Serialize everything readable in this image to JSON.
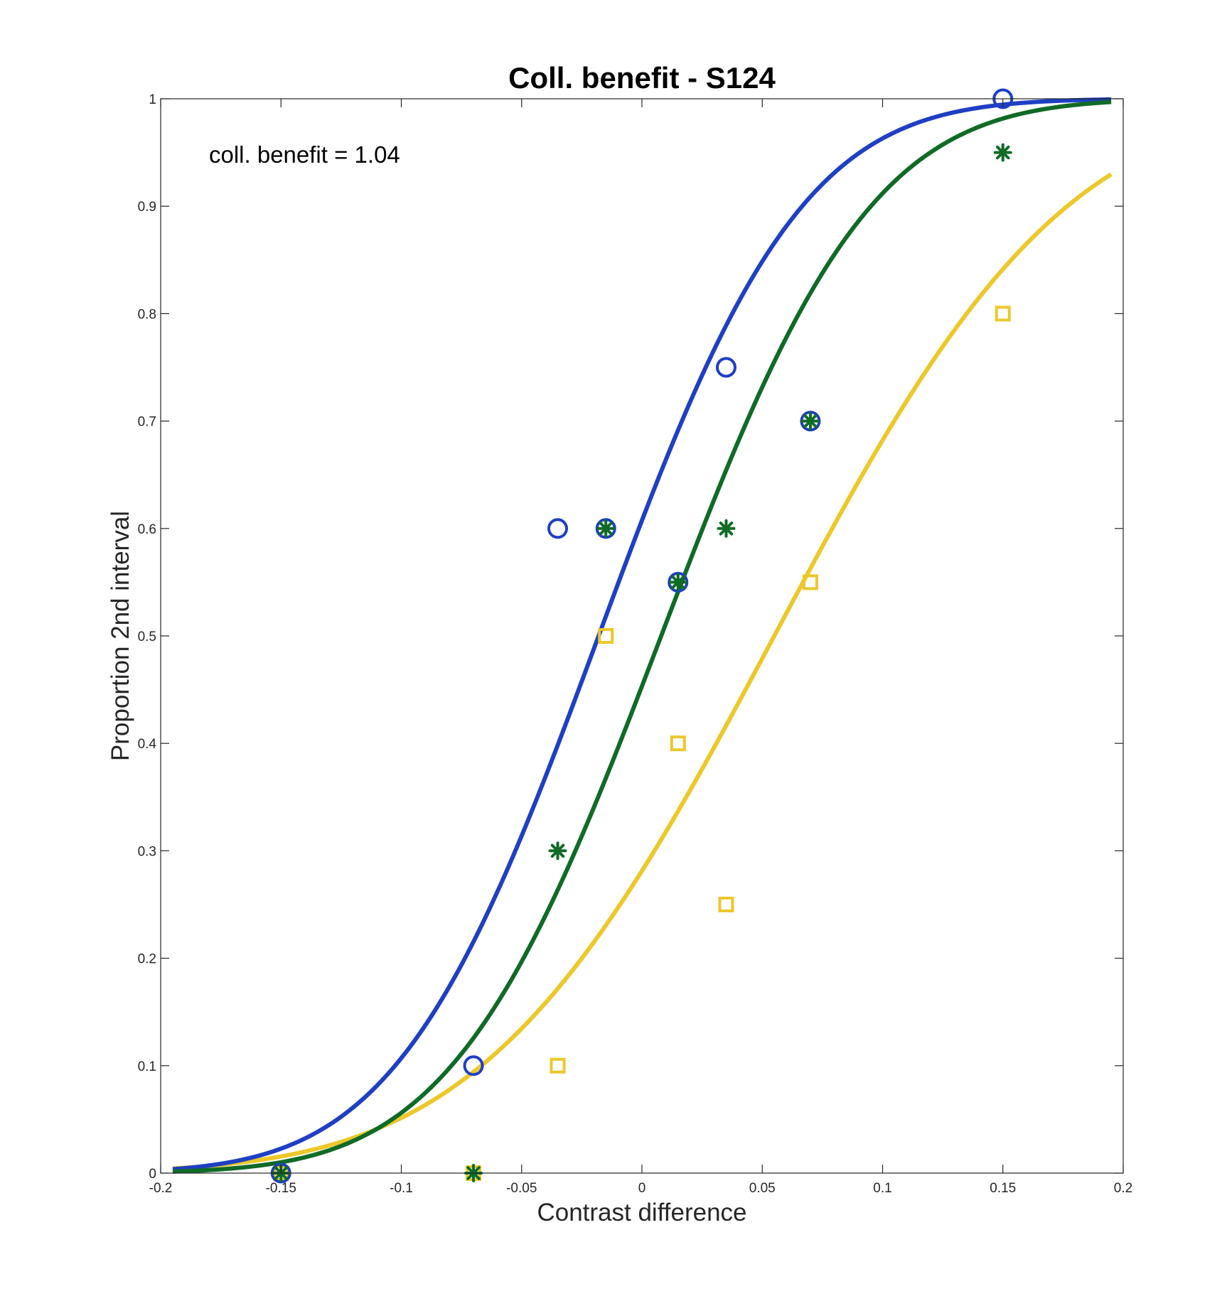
{
  "chart_data": {
    "type": "scatter",
    "title": "Coll. benefit - S124",
    "xlabel": "Contrast difference",
    "ylabel": "Proportion 2nd interval",
    "xlim": [
      -0.2,
      0.2
    ],
    "ylim": [
      0,
      1
    ],
    "x_ticks": [
      "-0.2",
      "-0.15",
      "-0.1",
      "-0.05",
      "0",
      "0.05",
      "0.1",
      "0.15",
      "0.2"
    ],
    "y_ticks": [
      "0",
      "0.1",
      "0.2",
      "0.3",
      "0.4",
      "0.5",
      "0.6",
      "0.7",
      "0.8",
      "0.9",
      "1"
    ],
    "grid": false,
    "box": true,
    "annotation": "coll. benefit = 1.04",
    "series": [
      {
        "marker": "circle",
        "color": "#1f3fc4",
        "x": [
          -0.15,
          -0.07,
          -0.035,
          -0.015,
          0.015,
          0.035,
          0.07,
          0.15
        ],
        "y": [
          0,
          0.1,
          0.6,
          0.6,
          0.55,
          0.75,
          0.7,
          1.0
        ],
        "fit": {
          "mu": -0.018,
          "sigma": 0.066
        }
      },
      {
        "marker": "square",
        "color": "#ecc82a",
        "x": [
          -0.15,
          -0.07,
          -0.035,
          -0.015,
          0.015,
          0.035,
          0.07,
          0.15
        ],
        "y": [
          0,
          0,
          0.1,
          0.5,
          0.4,
          0.25,
          0.55,
          0.8
        ],
        "fit": {
          "mu": 0.055,
          "sigma": 0.095
        }
      },
      {
        "marker": "asterisk",
        "color": "#0f6b26",
        "x": [
          -0.15,
          -0.07,
          -0.035,
          -0.015,
          0.015,
          0.035,
          0.07,
          0.15
        ],
        "y": [
          0,
          0,
          0.3,
          0.6,
          0.55,
          0.6,
          0.7,
          0.95
        ],
        "fit": {
          "mu": 0.008,
          "sigma": 0.068
        }
      }
    ]
  }
}
